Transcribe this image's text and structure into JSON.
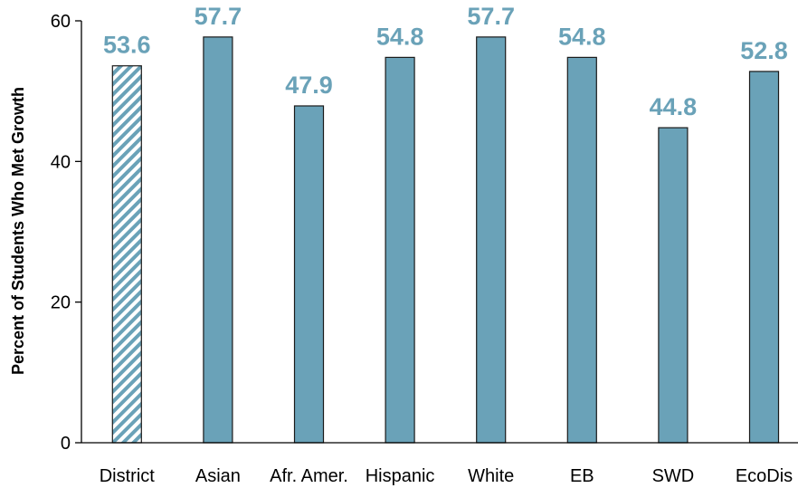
{
  "chart_data": {
    "type": "bar",
    "title": "",
    "xlabel": "",
    "ylabel": "Percent of Students Who Met Growth",
    "categories": [
      "District",
      "Asian",
      "Afr. Amer.",
      "Hispanic",
      "White",
      "EB",
      "SWD",
      "EcoDis"
    ],
    "values": [
      53.6,
      57.7,
      47.9,
      54.8,
      57.7,
      54.8,
      44.8,
      52.8
    ],
    "value_labels": [
      "53.6",
      "57.7",
      "47.9",
      "54.8",
      "57.7",
      "54.8",
      "44.8",
      "52.8"
    ],
    "ylim": [
      0,
      60
    ],
    "yticks": [
      0,
      20,
      40,
      60
    ],
    "ytick_labels": [
      "0",
      "20",
      "40",
      "60"
    ],
    "grid": false,
    "legend": "none",
    "highlight_category": "District",
    "colors": {
      "bar_fill": "#6aa2b8",
      "bar_stroke": "#1a1a1a",
      "highlight_stripe": "#6aa2b8",
      "data_label": "#6aa2b8",
      "axis": "#000000"
    }
  }
}
